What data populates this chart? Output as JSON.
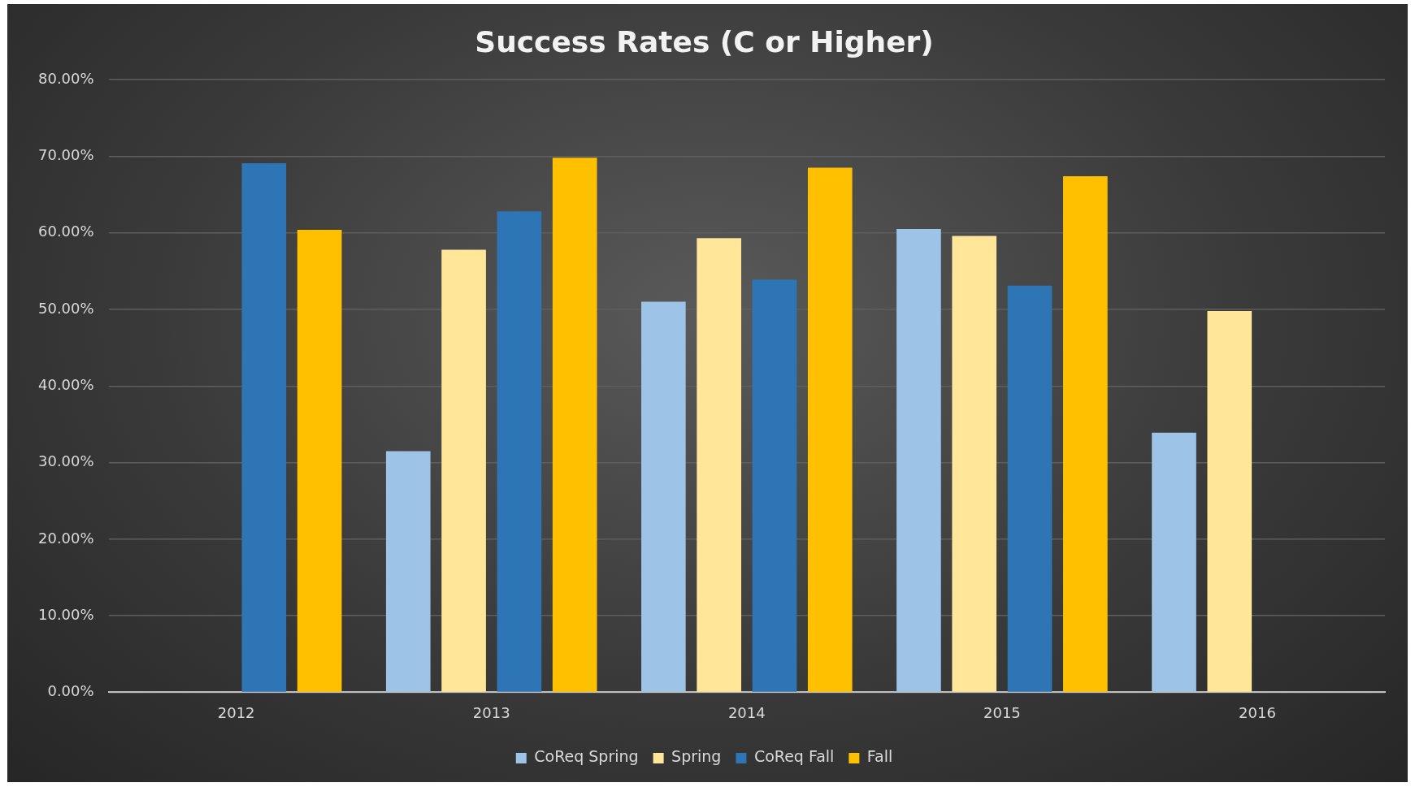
{
  "chart_data": {
    "type": "bar",
    "title": "Success Rates (C or Higher)",
    "categories": [
      "2012",
      "2013",
      "2014",
      "2015",
      "2016"
    ],
    "series": [
      {
        "name": "CoReq Spring",
        "color": "#9dc3e6",
        "values": [
          null,
          31.5,
          51.0,
          60.5,
          33.9
        ]
      },
      {
        "name": "Spring",
        "color": "#ffe699",
        "values": [
          null,
          57.8,
          59.3,
          59.6,
          49.8
        ]
      },
      {
        "name": "CoReq Fall",
        "color": "#2e75b6",
        "values": [
          69.1,
          62.8,
          53.9,
          53.1,
          null
        ]
      },
      {
        "name": "Fall",
        "color": "#ffc000",
        "values": [
          60.4,
          69.8,
          68.5,
          67.4,
          null
        ]
      }
    ],
    "ylim": [
      0,
      80
    ],
    "yticks": [
      {
        "value": 0,
        "label": "0.00%"
      },
      {
        "value": 10,
        "label": "10.00%"
      },
      {
        "value": 20,
        "label": "20.00%"
      },
      {
        "value": 30,
        "label": "30.00%"
      },
      {
        "value": 40,
        "label": "40.00%"
      },
      {
        "value": 50,
        "label": "50.00%"
      },
      {
        "value": 60,
        "label": "60.00%"
      },
      {
        "value": 70,
        "label": "70.00%"
      },
      {
        "value": 80,
        "label": "80.00%"
      }
    ],
    "grid": "y",
    "legend": "bottom"
  }
}
